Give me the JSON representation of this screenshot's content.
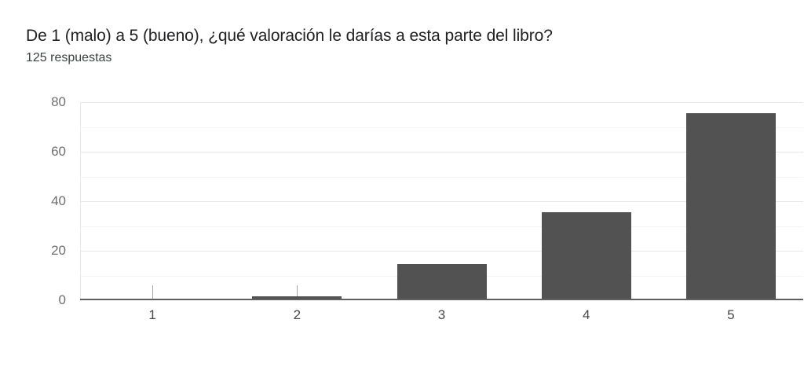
{
  "chart_data": {
    "type": "bar",
    "title": "De 1 (malo) a 5 (bueno), ¿qué valoración le darías a esta parte del libro?",
    "subtitle": "125 respuestas",
    "categories": [
      "1",
      "2",
      "3",
      "4",
      "5"
    ],
    "values": [
      0,
      1,
      14,
      35,
      75
    ],
    "xlabel": "",
    "ylabel": "",
    "ylim": [
      0,
      80
    ],
    "yticks": [
      0,
      20,
      40,
      60,
      80
    ],
    "minor_grid_step": 10,
    "grid": true,
    "legend_position": "none",
    "colors": {
      "bar": "#525252",
      "axis_line": "#5f5f5f",
      "y_axis_edge": "#e8e8e8",
      "grid_major": "#e8e8e8",
      "grid_minor": "#f4f4f4",
      "category_tick": "#a8a8a8",
      "y_label": "#6f6f6f",
      "x_label": "#474747",
      "title_text": "#202124",
      "subtitle_text": "#3c4043"
    }
  }
}
